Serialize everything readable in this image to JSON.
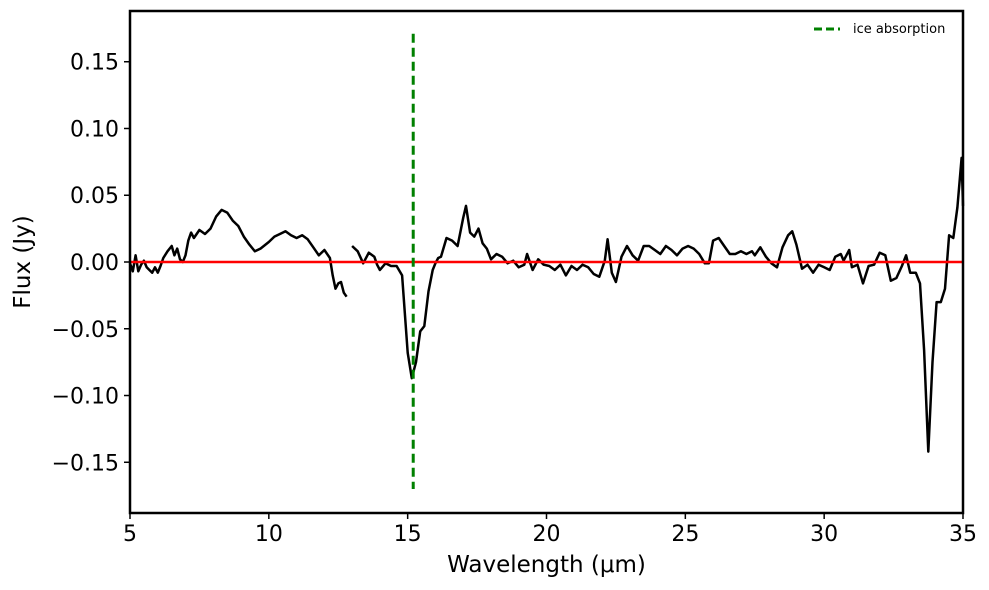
{
  "chart_data": {
    "type": "line",
    "xlabel": "Wavelength (μm)",
    "ylabel": "Flux (Jy)",
    "xlim": [
      5,
      35
    ],
    "ylim": [
      -0.188,
      0.188
    ],
    "x_ticks": [
      5,
      10,
      15,
      20,
      25,
      30,
      35
    ],
    "x_tick_labels": [
      "5",
      "10",
      "15",
      "20",
      "25",
      "30",
      "35"
    ],
    "y_ticks": [
      -0.15,
      -0.1,
      -0.05,
      0.0,
      0.05,
      0.1,
      0.15
    ],
    "y_tick_labels": [
      "−0.15",
      "−0.10",
      "−0.05",
      "0.00",
      "0.05",
      "0.10",
      "0.15"
    ],
    "grid": false,
    "legend": {
      "position": "top-right",
      "entries": [
        {
          "label": "ice absorption",
          "color": "#008000",
          "style": "dashed"
        }
      ]
    },
    "reference_line": {
      "y": 0.0,
      "color": "#ff0000"
    },
    "vertical_marker": {
      "x": 15.2,
      "y_range": [
        -0.17,
        0.171
      ],
      "color": "#008000",
      "style": "dashed"
    },
    "series": [
      {
        "color": "#000000",
        "segments": [
          [
            [
              5.0,
              -0.001
            ],
            [
              5.1,
              -0.007
            ],
            [
              5.2,
              0.005
            ],
            [
              5.3,
              -0.007
            ],
            [
              5.4,
              -0.002
            ],
            [
              5.5,
              0.001
            ],
            [
              5.6,
              -0.004
            ],
            [
              5.7,
              -0.006
            ],
            [
              5.8,
              -0.008
            ],
            [
              5.9,
              -0.004
            ],
            [
              6.0,
              -0.008
            ],
            [
              6.1,
              -0.003
            ],
            [
              6.2,
              0.003
            ],
            [
              6.35,
              0.008
            ],
            [
              6.5,
              0.012
            ],
            [
              6.6,
              0.005
            ],
            [
              6.7,
              0.01
            ],
            [
              6.8,
              0.002
            ],
            [
              6.9,
              0.0
            ],
            [
              7.0,
              0.005
            ],
            [
              7.1,
              0.016
            ],
            [
              7.2,
              0.022
            ],
            [
              7.3,
              0.018
            ],
            [
              7.5,
              0.024
            ],
            [
              7.7,
              0.021
            ],
            [
              7.9,
              0.025
            ],
            [
              8.1,
              0.034
            ],
            [
              8.3,
              0.039
            ],
            [
              8.5,
              0.037
            ],
            [
              8.7,
              0.031
            ],
            [
              8.9,
              0.027
            ],
            [
              9.1,
              0.019
            ],
            [
              9.3,
              0.013
            ],
            [
              9.5,
              0.008
            ],
            [
              9.7,
              0.01
            ],
            [
              10.0,
              0.015
            ],
            [
              10.2,
              0.019
            ],
            [
              10.4,
              0.021
            ],
            [
              10.6,
              0.023
            ],
            [
              10.8,
              0.02
            ],
            [
              11.0,
              0.018
            ],
            [
              11.2,
              0.02
            ],
            [
              11.4,
              0.017
            ],
            [
              11.6,
              0.011
            ],
            [
              11.8,
              0.005
            ],
            [
              12.0,
              0.009
            ],
            [
              12.2,
              0.003
            ],
            [
              12.3,
              -0.01
            ],
            [
              12.4,
              -0.02
            ],
            [
              12.5,
              -0.016
            ],
            [
              12.6,
              -0.015
            ],
            [
              12.7,
              -0.023
            ],
            [
              12.8,
              -0.026
            ]
          ],
          [
            [
              13.0,
              0.012
            ],
            [
              13.2,
              0.008
            ],
            [
              13.4,
              -0.001
            ],
            [
              13.6,
              0.007
            ],
            [
              13.8,
              0.004
            ],
            [
              13.9,
              -0.002
            ],
            [
              14.0,
              -0.006
            ],
            [
              14.2,
              -0.001
            ],
            [
              14.4,
              -0.003
            ],
            [
              14.6,
              -0.003
            ],
            [
              14.8,
              -0.01
            ],
            [
              15.0,
              -0.068
            ],
            [
              15.15,
              -0.087
            ],
            [
              15.3,
              -0.075
            ],
            [
              15.45,
              -0.052
            ],
            [
              15.6,
              -0.048
            ],
            [
              15.75,
              -0.022
            ],
            [
              15.9,
              -0.006
            ],
            [
              16.0,
              -0.001
            ],
            [
              16.1,
              0.003
            ],
            [
              16.2,
              0.004
            ],
            [
              16.4,
              0.018
            ],
            [
              16.6,
              0.016
            ],
            [
              16.8,
              0.012
            ],
            [
              17.0,
              0.033
            ],
            [
              17.1,
              0.042
            ],
            [
              17.25,
              0.022
            ],
            [
              17.4,
              0.019
            ],
            [
              17.55,
              0.025
            ],
            [
              17.7,
              0.014
            ],
            [
              17.85,
              0.01
            ],
            [
              18.0,
              0.002
            ],
            [
              18.2,
              0.006
            ],
            [
              18.4,
              0.004
            ],
            [
              18.6,
              -0.001
            ],
            [
              18.8,
              0.001
            ],
            [
              19.0,
              -0.004
            ],
            [
              19.2,
              -0.002
            ],
            [
              19.3,
              0.006
            ],
            [
              19.5,
              -0.006
            ],
            [
              19.7,
              0.002
            ],
            [
              19.9,
              -0.002
            ],
            [
              20.1,
              -0.003
            ],
            [
              20.3,
              -0.006
            ],
            [
              20.5,
              -0.002
            ],
            [
              20.7,
              -0.01
            ],
            [
              20.9,
              -0.003
            ],
            [
              21.1,
              -0.006
            ],
            [
              21.3,
              -0.002
            ],
            [
              21.5,
              -0.004
            ],
            [
              21.7,
              -0.009
            ],
            [
              21.9,
              -0.011
            ],
            [
              22.1,
              0.001
            ],
            [
              22.2,
              0.017
            ],
            [
              22.35,
              -0.008
            ],
            [
              22.5,
              -0.015
            ],
            [
              22.7,
              0.004
            ],
            [
              22.9,
              0.012
            ],
            [
              23.1,
              0.005
            ],
            [
              23.3,
              0.001
            ],
            [
              23.5,
              0.012
            ],
            [
              23.7,
              0.012
            ],
            [
              23.9,
              0.009
            ],
            [
              24.1,
              0.006
            ],
            [
              24.3,
              0.012
            ],
            [
              24.5,
              0.009
            ],
            [
              24.7,
              0.005
            ],
            [
              24.9,
              0.01
            ],
            [
              25.1,
              0.012
            ],
            [
              25.3,
              0.01
            ],
            [
              25.5,
              0.006
            ],
            [
              25.7,
              -0.001
            ],
            [
              25.85,
              -0.001
            ],
            [
              26.0,
              0.016
            ],
            [
              26.2,
              0.018
            ],
            [
              26.4,
              0.012
            ],
            [
              26.6,
              0.006
            ],
            [
              26.8,
              0.006
            ],
            [
              27.0,
              0.008
            ],
            [
              27.2,
              0.006
            ],
            [
              27.4,
              0.008
            ],
            [
              27.5,
              0.005
            ],
            [
              27.7,
              0.011
            ],
            [
              27.9,
              0.004
            ],
            [
              28.1,
              -0.001
            ],
            [
              28.3,
              -0.004
            ],
            [
              28.5,
              0.011
            ],
            [
              28.7,
              0.02
            ],
            [
              28.85,
              0.023
            ],
            [
              29.0,
              0.013
            ],
            [
              29.2,
              -0.005
            ],
            [
              29.4,
              -0.002
            ],
            [
              29.6,
              -0.008
            ],
            [
              29.8,
              -0.002
            ],
            [
              30.0,
              -0.004
            ],
            [
              30.2,
              -0.006
            ],
            [
              30.4,
              0.004
            ],
            [
              30.6,
              0.006
            ],
            [
              30.7,
              0.001
            ],
            [
              30.9,
              0.009
            ],
            [
              31.0,
              -0.004
            ],
            [
              31.2,
              -0.002
            ],
            [
              31.4,
              -0.016
            ],
            [
              31.6,
              -0.003
            ],
            [
              31.8,
              -0.002
            ],
            [
              32.0,
              0.007
            ],
            [
              32.2,
              0.005
            ],
            [
              32.4,
              -0.014
            ],
            [
              32.6,
              -0.012
            ],
            [
              32.8,
              -0.003
            ],
            [
              32.95,
              0.005
            ],
            [
              33.1,
              -0.008
            ],
            [
              33.3,
              -0.008
            ],
            [
              33.45,
              -0.016
            ],
            [
              33.6,
              -0.066
            ],
            [
              33.75,
              -0.142
            ],
            [
              33.9,
              -0.075
            ],
            [
              34.05,
              -0.03
            ],
            [
              34.2,
              -0.03
            ],
            [
              34.35,
              -0.02
            ],
            [
              34.5,
              0.02
            ],
            [
              34.65,
              0.018
            ],
            [
              34.8,
              0.041
            ],
            [
              34.95,
              0.078
            ],
            [
              35.0,
              0.042
            ]
          ]
        ]
      }
    ]
  }
}
